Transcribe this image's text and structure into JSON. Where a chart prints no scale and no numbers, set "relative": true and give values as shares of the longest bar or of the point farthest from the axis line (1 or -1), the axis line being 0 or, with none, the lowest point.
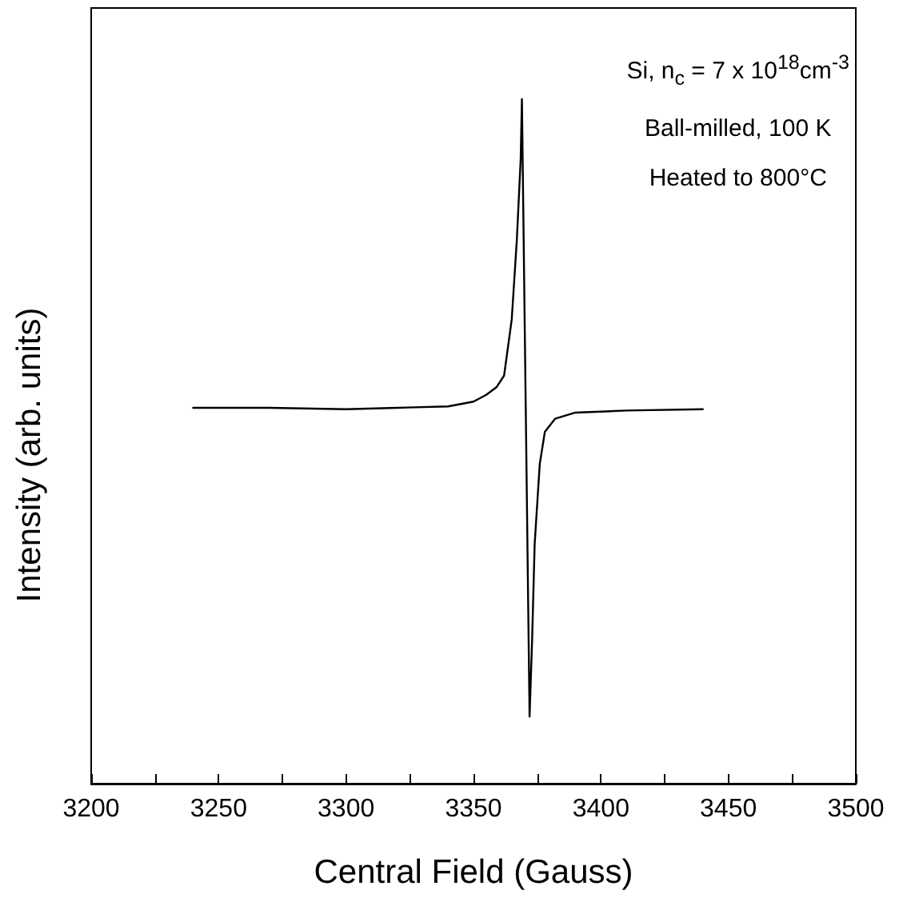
{
  "chart_data": {
    "type": "line",
    "relative": true,
    "xlabel": "Central Field (Gauss)",
    "ylabel": "Intensity (arb. units)",
    "annotations": [
      "Si, n$_{c}$ = 7 x 10$^{18}$cm$^{-3}$",
      "Ball-milled, 100 K",
      "Heated to 800°C"
    ],
    "xlim": [
      3200,
      3500
    ],
    "xticks": [
      3200,
      {
        "value": 3225,
        "label": null
      },
      3250,
      {
        "value": 3275,
        "label": null
      },
      3300,
      {
        "value": 3325,
        "label": null
      },
      3350,
      {
        "value": 3375,
        "label": null
      },
      3400,
      {
        "value": 3425,
        "label": null
      },
      3450,
      {
        "value": 3475,
        "label": null
      },
      3500
    ],
    "marker": "none",
    "line_style": "solid",
    "series": [
      {
        "color": "#000000",
        "x": [
          3240,
          3270,
          3300,
          3320,
          3340,
          3350,
          3355,
          3359,
          3362,
          3365,
          3367,
          3368.5,
          3369,
          3372,
          3373,
          3374,
          3376,
          3378,
          3382,
          3390,
          3410,
          3440
        ],
        "values": [
          0.549,
          0.549,
          0.547,
          0.549,
          0.551,
          0.558,
          0.568,
          0.579,
          0.596,
          0.678,
          0.794,
          0.911,
          1,
          0.098,
          0.21,
          0.35,
          0.467,
          0.514,
          0.533,
          0.542,
          0.545,
          0.547
        ]
      }
    ]
  }
}
